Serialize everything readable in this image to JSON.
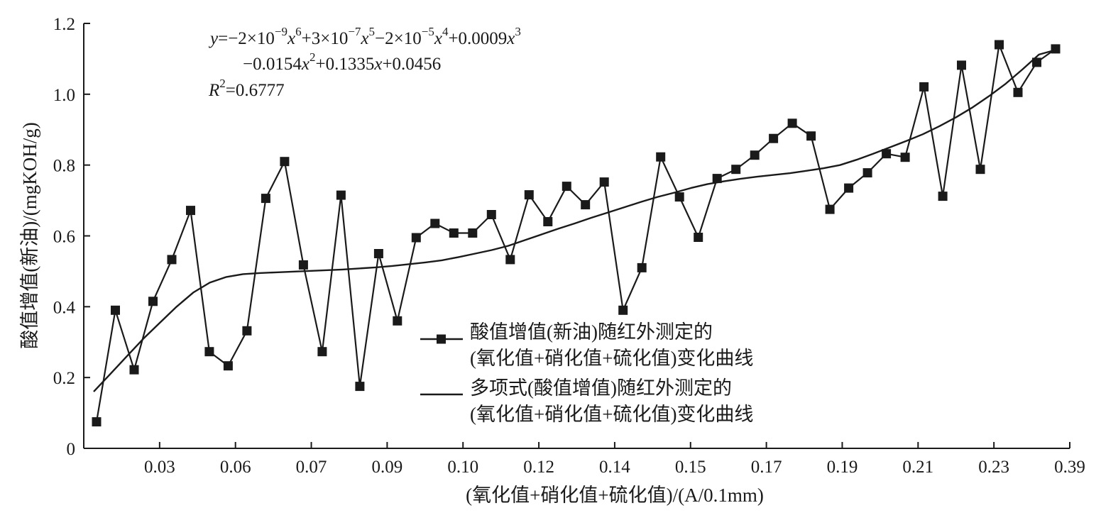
{
  "chart_data": {
    "type": "line",
    "xlabel": "(氧化值+硝化值+硫化值)/(A/0.1mm)",
    "ylabel": "酸值增值(新油)/(mgKOH/g)",
    "x_tick_labels": [
      "0.03",
      "0.06",
      "0.07",
      "0.09",
      "0.10",
      "0.12",
      "0.14",
      "0.15",
      "0.17",
      "0.19",
      "0.21",
      "0.23",
      "0.39"
    ],
    "y_tick_labels": [
      "0",
      "0.2",
      "0.4",
      "0.6",
      "0.8",
      "1.0",
      "1.2"
    ],
    "ylim": [
      0,
      1.2
    ],
    "equation": {
      "line1_prefix": "y",
      "line1": "=−2×10^−9x^6+3×10^−7x^5−2×10^−5x^4+0.0009x^3",
      "line2": "−0.0154x^2+0.1335x+0.0456",
      "r2_label": "R^2=0.6777"
    },
    "legend": {
      "position": "center",
      "items": [
        {
          "name_line1": "酸值增值(新油)随红外测定的",
          "name_line2": "(氧化值+硝化值+硫化值)变化曲线",
          "marker": "square"
        },
        {
          "name_line1": "多项式(酸值增值)随红外测定的",
          "name_line2": "(氧化值+硝化值+硫化值)变化曲线",
          "marker": "none"
        }
      ]
    },
    "series": [
      {
        "marker": "square",
        "values": [
          0.075,
          0.39,
          0.222,
          0.415,
          0.533,
          0.672,
          0.273,
          0.233,
          0.332,
          0.706,
          0.81,
          0.518,
          0.273,
          0.715,
          0.175,
          0.55,
          0.36,
          0.595,
          0.635,
          0.608,
          0.608,
          0.66,
          0.533,
          0.716,
          0.64,
          0.74,
          0.688,
          0.752,
          0.39,
          0.51,
          0.823,
          0.71,
          0.596,
          0.762,
          0.788,
          0.828,
          0.875,
          0.918,
          0.882,
          0.675,
          0.735,
          0.778,
          0.832,
          0.822,
          1.021,
          0.712,
          1.082,
          0.788,
          1.14,
          1.005,
          1.09,
          1.128
        ]
      },
      {
        "marker": "none",
        "values": [
          0.16,
          0.21,
          0.26,
          0.31,
          0.355,
          0.4,
          0.44,
          0.468,
          0.484,
          0.492,
          0.495,
          0.497,
          0.499,
          0.501,
          0.503,
          0.505,
          0.508,
          0.511,
          0.515,
          0.52,
          0.525,
          0.531,
          0.54,
          0.55,
          0.56,
          0.572,
          0.588,
          0.604,
          0.62,
          0.635,
          0.651,
          0.666,
          0.681,
          0.696,
          0.71,
          0.722,
          0.735,
          0.746,
          0.754,
          0.761,
          0.767,
          0.772,
          0.777,
          0.784,
          0.791,
          0.8,
          0.815,
          0.832,
          0.85,
          0.868,
          0.887,
          0.91,
          0.935,
          0.963,
          0.995,
          1.03,
          1.07,
          1.112,
          1.125
        ]
      }
    ],
    "colors": {
      "line": "#1a1a1a",
      "background": "#ffffff"
    }
  }
}
